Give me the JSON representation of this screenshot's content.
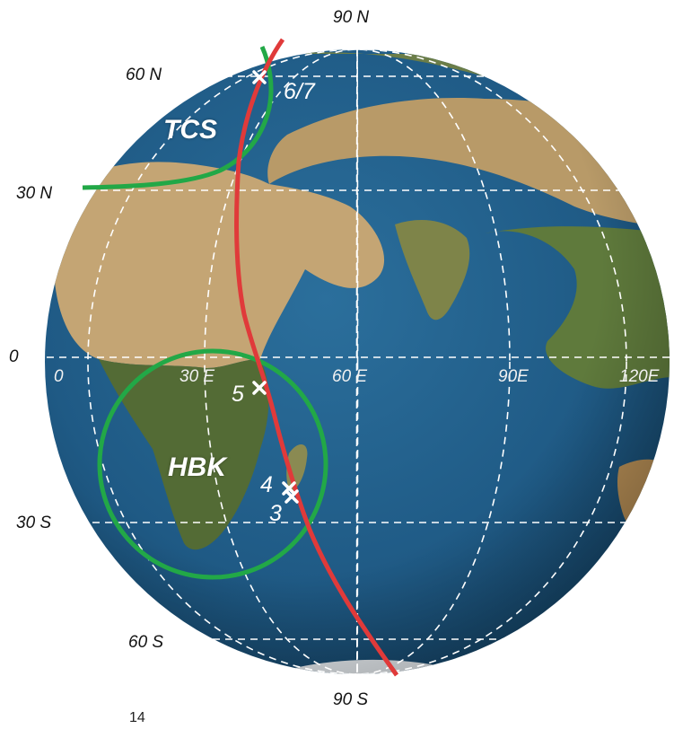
{
  "map": {
    "colors": {
      "ocean": "#1f5a85",
      "land_desert": "#c4a574",
      "land_green": "#4f6a30",
      "graticule": "#ffffff",
      "track": "#e03a3a",
      "region_outline": "#22a847",
      "marker": "#ffffff"
    },
    "latitude_labels": {
      "n90": "90 N",
      "n60": "60 N",
      "n30": "30 N",
      "eq": "0",
      "s30": "30 S",
      "s60": "60 S",
      "s90": "90 S"
    },
    "longitude_labels": {
      "e0": "0",
      "e30": "30 E",
      "e60": "60 E",
      "e90": "90E",
      "e120": "120E"
    },
    "regions": {
      "tcs": "TCS",
      "hbk": "HBK"
    },
    "points": {
      "p3": "3",
      "p4": "4",
      "p5": "5",
      "p67": "6/7"
    },
    "page_number": "14"
  }
}
